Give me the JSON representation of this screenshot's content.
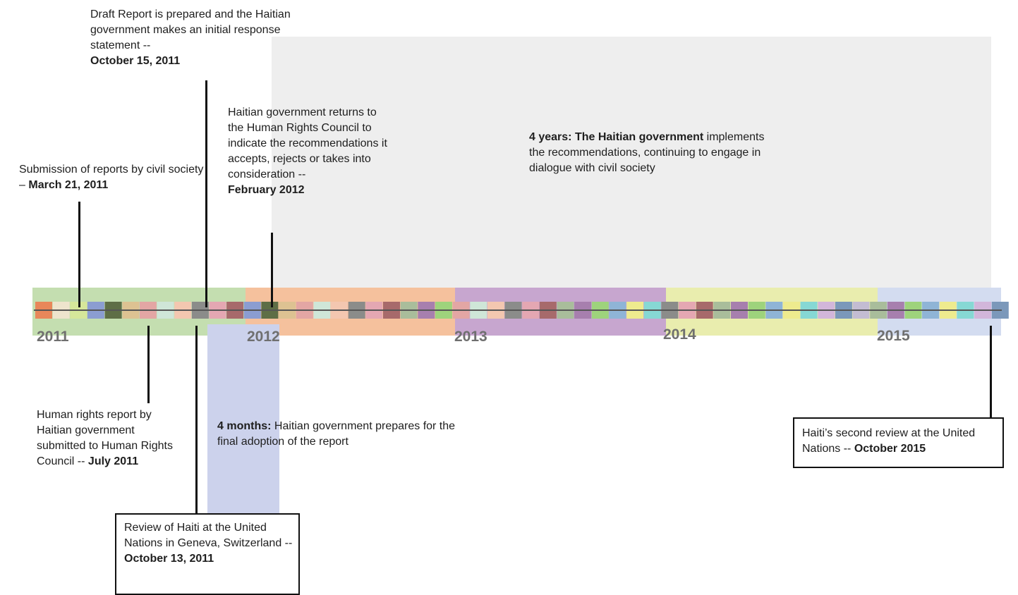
{
  "years": [
    "2011",
    "2012",
    "2013",
    "2014",
    "2015"
  ],
  "colors": {
    "band_2011": "#c4deb0",
    "band_2012": "#f5c19d",
    "band_2013": "#c7a6cf",
    "band_2014": "#e9edae",
    "band_2015": "#d3dcf0",
    "period_4years": "#eeeeee",
    "period_4months": "#ccd2ec",
    "timeline_axis": "#555555",
    "squares": [
      "#e8875a",
      "#7b98ba",
      "#eeeb8e",
      "#a77fae",
      "#e4a7b2",
      "#cfe6d8",
      "#5e6e46",
      "#eee4cd",
      "#c3bcd2",
      "#86d8d4",
      "#9ed37c",
      "#a76a6b",
      "#f3c7b0",
      "#ddc292",
      "#d6e79a",
      "#f1cfd6",
      "#d2b6da",
      "#8fb4d6",
      "#a9bd9b",
      "#8b8c8a",
      "#e3a6a4",
      "#8b9dd1"
    ]
  },
  "events": {
    "draft_report": {
      "text": "Draft Report is prepared and the Haitian government makes an initial response statement --",
      "date": "October 15, 2011"
    },
    "submission_civil_society": {
      "text": "Submission of reports by civil society –",
      "date": "March 21, 2011"
    },
    "government_returns": {
      "text": "Haitian government returns to the Human Rights Council to indicate the recommendations it accepts, rejects or takes into consideration --",
      "date": "February 2012"
    },
    "human_rights_report": {
      "text": "Human rights report by Haitian government submitted to Human Rights Council --",
      "date": "July 2011"
    },
    "review_geneva": {
      "text": "Review of Haiti at the United Nations in Geneva, Switzerland --",
      "date": "October 13, 2011"
    },
    "second_review": {
      "text": "Haiti’s second review at the United Nations --",
      "date": "October 2015"
    }
  },
  "periods": {
    "four_years": {
      "lead": "4 years: The Haitian government",
      "text": "implements the recommendations, continuing to engage in dialogue with civil society"
    },
    "four_months": {
      "lead": "4 months:",
      "text": "Haitian government prepares for the final adoption of the report"
    }
  }
}
